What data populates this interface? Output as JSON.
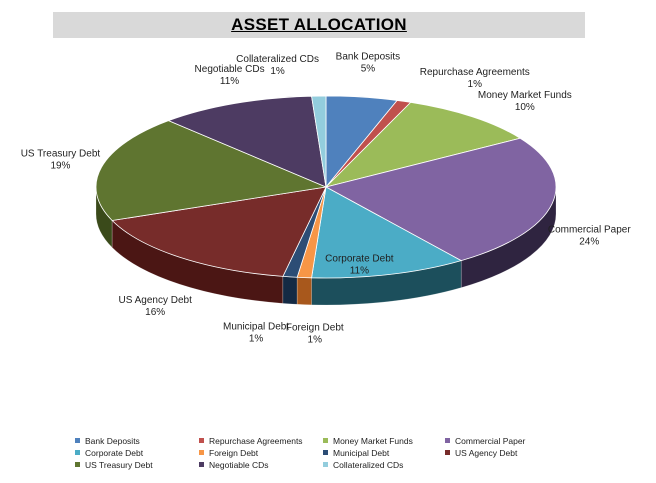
{
  "title": "ASSET ALLOCATION",
  "chart_data": {
    "type": "pie",
    "title": "ASSET ALLOCATION",
    "style": "3d",
    "slices": [
      {
        "name": "Bank Deposits",
        "value": 5,
        "pct": "5%",
        "color": "#4f81bd",
        "side": "#2f5a8a"
      },
      {
        "name": "Repurchase Agreements",
        "value": 1,
        "pct": "1%",
        "color": "#c0504d",
        "side": "#7e2523"
      },
      {
        "name": "Money Market Funds",
        "value": 10,
        "pct": "10%",
        "color": "#9bbb59",
        "side": "#5c7626"
      },
      {
        "name": "Commercial Paper",
        "value": 24,
        "pct": "24%",
        "color": "#8064a2",
        "side": "#2f2440"
      },
      {
        "name": "Corporate  Debt",
        "value": 11,
        "pct": "11%",
        "color": "#4bacc6",
        "side": "#1c4f5c"
      },
      {
        "name": "Foreign Debt",
        "value": 1,
        "pct": "1%",
        "color": "#f79646",
        "side": "#a8581c"
      },
      {
        "name": "Municipal Debt",
        "value": 1,
        "pct": "1%",
        "color": "#2c4d75",
        "side": "#142a44"
      },
      {
        "name": "US Agency Debt",
        "value": 16,
        "pct": "16%",
        "color": "#772c2a",
        "side": "#4b1614"
      },
      {
        "name": "US Treasury Debt",
        "value": 19,
        "pct": "19%",
        "color": "#5f7530",
        "side": "#3a4a1a"
      },
      {
        "name": "Negotiable CDs",
        "value": 11,
        "pct": "11%",
        "color": "#4d3b62",
        "side": "#2c2038"
      },
      {
        "name": "Collateralized CDs",
        "value": 1,
        "pct": "1%",
        "color": "#93cddd",
        "side": "#5a93a2"
      }
    ]
  },
  "legend": [
    {
      "label": "Bank Deposits",
      "color": "#4f81bd"
    },
    {
      "label": "Repurchase Agreements",
      "color": "#c0504d"
    },
    {
      "label": "Money Market Funds",
      "color": "#9bbb59"
    },
    {
      "label": "Commercial Paper",
      "color": "#8064a2"
    },
    {
      "label": "Corporate  Debt",
      "color": "#4bacc6"
    },
    {
      "label": "Foreign Debt",
      "color": "#f79646"
    },
    {
      "label": "Municipal Debt",
      "color": "#2c4d75"
    },
    {
      "label": "US Agency Debt",
      "color": "#772c2a"
    },
    {
      "label": "US Treasury Debt",
      "color": "#5f7530"
    },
    {
      "label": "Negotiable CDs",
      "color": "#4d3b62"
    },
    {
      "label": "Collateralized CDs",
      "color": "#93cddd"
    }
  ]
}
